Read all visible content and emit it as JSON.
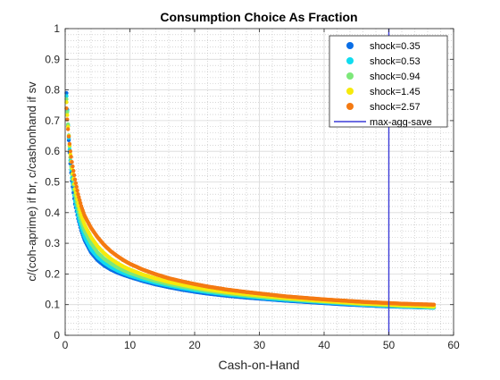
{
  "chart_data": {
    "type": "scatter",
    "title": "Consumption Choice As Fraction",
    "xlabel": "Cash-on-Hand",
    "ylabel": "c/(coh-aprime) if br, c/cashonhand if sv",
    "xlim": [
      0,
      60
    ],
    "ylim": [
      0,
      1
    ],
    "xticks": [
      "0",
      "10",
      "20",
      "30",
      "40",
      "50",
      "60"
    ],
    "yticks": [
      "0",
      "0.1",
      "0.2",
      "0.3",
      "0.4",
      "0.5",
      "0.6",
      "0.7",
      "0.8",
      "0.9",
      "1"
    ],
    "grid": "major and minor, dotted",
    "legend_position": "top-right",
    "series": [
      {
        "name": "shock=0.35",
        "color": "#0a6ee6",
        "points": [
          [
            0.2,
            0.79
          ],
          [
            0.4,
            0.7
          ],
          [
            0.6,
            0.62
          ],
          [
            0.8,
            0.56
          ],
          [
            1,
            0.51
          ],
          [
            1.5,
            0.43
          ],
          [
            2,
            0.38
          ],
          [
            2.5,
            0.34
          ],
          [
            3,
            0.31
          ],
          [
            4,
            0.27
          ],
          [
            5,
            0.245
          ],
          [
            6,
            0.228
          ],
          [
            7,
            0.215
          ],
          [
            8,
            0.205
          ],
          [
            9,
            0.197
          ],
          [
            10,
            0.19
          ],
          [
            12,
            0.177
          ],
          [
            14,
            0.166
          ],
          [
            16,
            0.157
          ],
          [
            18,
            0.149
          ],
          [
            20,
            0.142
          ],
          [
            22,
            0.136
          ],
          [
            25,
            0.129
          ],
          [
            28,
            0.123
          ],
          [
            31,
            0.118
          ],
          [
            34,
            0.113
          ],
          [
            37,
            0.109
          ],
          [
            40,
            0.105
          ],
          [
            43,
            0.101
          ],
          [
            46,
            0.098
          ],
          [
            49,
            0.095
          ],
          [
            52,
            0.093
          ],
          [
            55,
            0.091
          ],
          [
            57,
            0.09
          ]
        ]
      },
      {
        "name": "shock=0.53",
        "color": "#10dcef",
        "points": [
          [
            0.2,
            0.78
          ],
          [
            0.4,
            0.7
          ],
          [
            0.6,
            0.63
          ],
          [
            0.8,
            0.57
          ],
          [
            1,
            0.52
          ],
          [
            1.5,
            0.44
          ],
          [
            2,
            0.39
          ],
          [
            2.5,
            0.35
          ],
          [
            3,
            0.32
          ],
          [
            4,
            0.28
          ],
          [
            5,
            0.255
          ],
          [
            6,
            0.237
          ],
          [
            7,
            0.223
          ],
          [
            8,
            0.212
          ],
          [
            9,
            0.203
          ],
          [
            10,
            0.195
          ],
          [
            12,
            0.182
          ],
          [
            14,
            0.171
          ],
          [
            16,
            0.162
          ],
          [
            18,
            0.154
          ],
          [
            20,
            0.147
          ],
          [
            22,
            0.141
          ],
          [
            25,
            0.133
          ],
          [
            28,
            0.127
          ],
          [
            31,
            0.121
          ],
          [
            34,
            0.116
          ],
          [
            37,
            0.112
          ],
          [
            40,
            0.108
          ],
          [
            43,
            0.104
          ],
          [
            46,
            0.1
          ],
          [
            49,
            0.097
          ],
          [
            52,
            0.094
          ],
          [
            55,
            0.092
          ],
          [
            57,
            0.09
          ]
        ]
      },
      {
        "name": "shock=0.94",
        "color": "#7de87a",
        "points": [
          [
            0.2,
            0.77
          ],
          [
            0.4,
            0.7
          ],
          [
            0.6,
            0.64
          ],
          [
            0.8,
            0.58
          ],
          [
            1,
            0.53
          ],
          [
            1.5,
            0.46
          ],
          [
            2,
            0.41
          ],
          [
            2.5,
            0.37
          ],
          [
            3,
            0.34
          ],
          [
            4,
            0.3
          ],
          [
            5,
            0.27
          ],
          [
            6,
            0.25
          ],
          [
            7,
            0.235
          ],
          [
            8,
            0.222
          ],
          [
            9,
            0.212
          ],
          [
            10,
            0.203
          ],
          [
            12,
            0.189
          ],
          [
            14,
            0.177
          ],
          [
            16,
            0.167
          ],
          [
            18,
            0.159
          ],
          [
            20,
            0.152
          ],
          [
            22,
            0.145
          ],
          [
            25,
            0.137
          ],
          [
            28,
            0.13
          ],
          [
            31,
            0.124
          ],
          [
            34,
            0.119
          ],
          [
            37,
            0.114
          ],
          [
            40,
            0.11
          ],
          [
            43,
            0.106
          ],
          [
            46,
            0.102
          ],
          [
            49,
            0.099
          ],
          [
            52,
            0.096
          ],
          [
            55,
            0.094
          ],
          [
            57,
            0.092
          ]
        ]
      },
      {
        "name": "shock=1.45",
        "color": "#f6ea0c",
        "points": [
          [
            0.2,
            0.76
          ],
          [
            0.4,
            0.69
          ],
          [
            0.6,
            0.64
          ],
          [
            0.8,
            0.59
          ],
          [
            1,
            0.55
          ],
          [
            1.5,
            0.48
          ],
          [
            2,
            0.43
          ],
          [
            2.5,
            0.39
          ],
          [
            3,
            0.36
          ],
          [
            4,
            0.32
          ],
          [
            5,
            0.29
          ],
          [
            6,
            0.268
          ],
          [
            7,
            0.25
          ],
          [
            8,
            0.236
          ],
          [
            9,
            0.224
          ],
          [
            10,
            0.214
          ],
          [
            12,
            0.198
          ],
          [
            14,
            0.185
          ],
          [
            16,
            0.174
          ],
          [
            18,
            0.165
          ],
          [
            20,
            0.157
          ],
          [
            22,
            0.15
          ],
          [
            25,
            0.141
          ],
          [
            28,
            0.134
          ],
          [
            31,
            0.128
          ],
          [
            34,
            0.122
          ],
          [
            37,
            0.117
          ],
          [
            40,
            0.112
          ],
          [
            43,
            0.108
          ],
          [
            46,
            0.104
          ],
          [
            49,
            0.101
          ],
          [
            52,
            0.098
          ],
          [
            55,
            0.096
          ],
          [
            57,
            0.094
          ]
        ]
      },
      {
        "name": "shock=2.57",
        "color": "#f47a12",
        "points": [
          [
            0.2,
            0.74
          ],
          [
            0.4,
            0.68
          ],
          [
            0.6,
            0.64
          ],
          [
            0.8,
            0.6
          ],
          [
            1,
            0.57
          ],
          [
            1.5,
            0.51
          ],
          [
            2,
            0.46
          ],
          [
            2.5,
            0.42
          ],
          [
            3,
            0.39
          ],
          [
            4,
            0.35
          ],
          [
            5,
            0.32
          ],
          [
            6,
            0.295
          ],
          [
            7,
            0.275
          ],
          [
            8,
            0.259
          ],
          [
            9,
            0.245
          ],
          [
            10,
            0.233
          ],
          [
            12,
            0.214
          ],
          [
            14,
            0.199
          ],
          [
            16,
            0.186
          ],
          [
            18,
            0.176
          ],
          [
            20,
            0.167
          ],
          [
            22,
            0.159
          ],
          [
            25,
            0.149
          ],
          [
            28,
            0.141
          ],
          [
            31,
            0.134
          ],
          [
            34,
            0.127
          ],
          [
            37,
            0.122
          ],
          [
            40,
            0.117
          ],
          [
            43,
            0.113
          ],
          [
            46,
            0.109
          ],
          [
            49,
            0.106
          ],
          [
            52,
            0.103
          ],
          [
            55,
            0.101
          ],
          [
            57,
            0.1
          ]
        ]
      }
    ],
    "reference_line": {
      "name": "max-agg-save",
      "orientation": "vertical",
      "x": 50,
      "color": "#3c3cd8"
    }
  }
}
